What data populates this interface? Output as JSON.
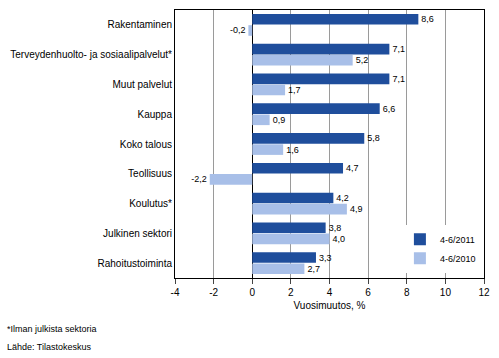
{
  "chart_data": {
    "type": "bar",
    "orientation": "horizontal",
    "x_label": "Vuosimuutos, %",
    "categories": [
      "Rakentaminen",
      "Terveydenhuolto- ja sosiaalipalvelut*",
      "Muut palvelut",
      "Kauppa",
      "Koko talous",
      "Teollisuus",
      "Koulutus*",
      "Julkinen sektori",
      "Rahoitustoiminta"
    ],
    "series": [
      {
        "name": "4-6/2011",
        "color": "#1f4e9c",
        "values": [
          8.6,
          7.1,
          7.1,
          6.6,
          5.8,
          4.7,
          4.2,
          3.8,
          3.3
        ],
        "value_labels": [
          "8,6",
          "7,1",
          "7,1",
          "6,6",
          "5,8",
          "4,7",
          "4,2",
          "3,8",
          "3,3"
        ]
      },
      {
        "name": "4-6/2010",
        "color": "#a8bfe8",
        "values": [
          -0.2,
          5.2,
          1.7,
          0.9,
          1.6,
          -2.2,
          4.9,
          4.0,
          2.7
        ],
        "value_labels": [
          "-0,2",
          "5,2",
          "1,7",
          "0,9",
          "1,6",
          "-2,2",
          "4,9",
          "4,0",
          "2,7"
        ]
      }
    ],
    "xlim": [
      -4,
      12
    ],
    "xticks": [
      -4,
      -2,
      0,
      2,
      4,
      6,
      8,
      10,
      12
    ],
    "grid": true,
    "data_labels": true,
    "legend": "lower right",
    "annotations": [
      "*Ilman julkista sektoria",
      "Lähde: Tilastokeskus"
    ]
  }
}
